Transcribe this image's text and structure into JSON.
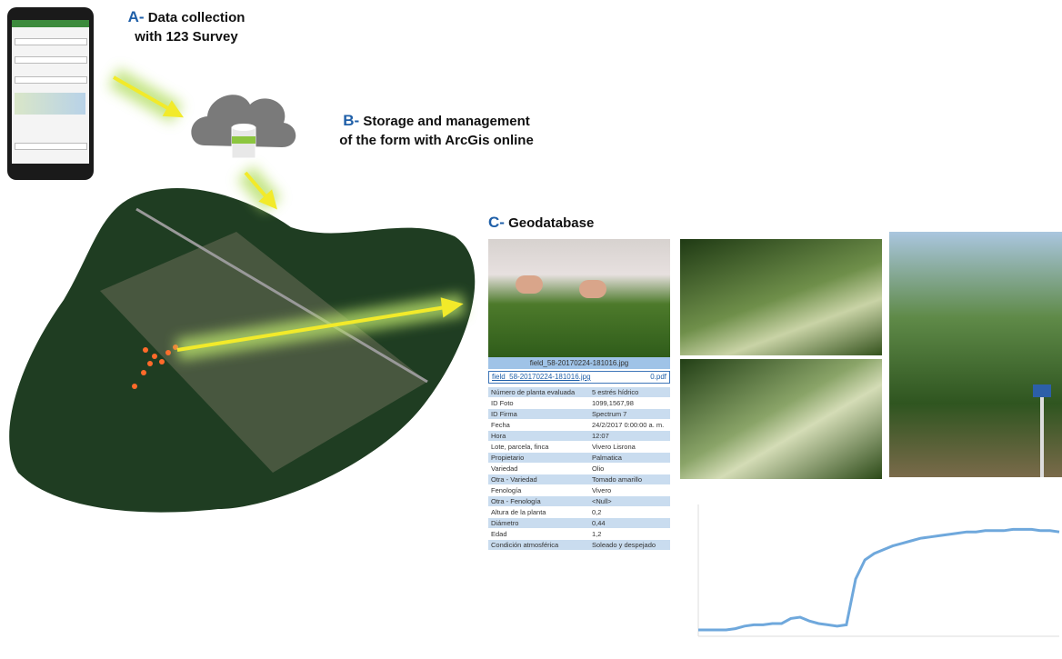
{
  "steps": [
    {
      "letter": "A-",
      "lines": [
        "Data collection",
        "with 123 Survey"
      ]
    },
    {
      "letter": "B-",
      "lines": [
        "Storage and management",
        "of the form with ArcGis online"
      ]
    },
    {
      "letter": "C-",
      "lines": [
        "Geodatabase"
      ]
    }
  ],
  "record": {
    "caption": "field_58-20170224-181016.jpg",
    "link": "field_58-20170224-181016.jpg",
    "attachment": "0.pdf",
    "rows": [
      [
        "Número de planta evaluada",
        "5 estrés hídrico"
      ],
      [
        "ID Foto",
        "1099,1567,98"
      ],
      [
        "ID Firma",
        "Spectrum 7"
      ],
      [
        "Fecha",
        "24/2/2017 0:00:00 a. m."
      ],
      [
        "Hora",
        "12:07"
      ],
      [
        "Lote, parcela, finca",
        "Vivero Lisrona"
      ],
      [
        "Propietario",
        "Palmatica"
      ],
      [
        "Variedad",
        "Olio"
      ],
      [
        "Otra - Variedad",
        "Tomado amarillo"
      ],
      [
        "Fenología",
        "Vivero"
      ],
      [
        "Otra - Fenología",
        "<Null>"
      ],
      [
        "Altura de la planta",
        "0,2"
      ],
      [
        "Diámetro",
        "0,44"
      ],
      [
        "Edad",
        "1,2"
      ],
      [
        "Condición atmosférica",
        "Soleado y despejado"
      ]
    ]
  },
  "chart_data": {
    "type": "line",
    "color": "#6fa8dc",
    "ylim": [
      0,
      100
    ],
    "values": [
      5,
      5,
      5,
      5,
      6,
      8,
      9,
      9,
      10,
      10,
      14,
      15,
      12,
      10,
      9,
      8,
      9,
      45,
      60,
      65,
      68,
      71,
      73,
      75,
      77,
      78,
      79,
      80,
      81,
      82,
      82,
      83,
      83,
      83,
      84,
      84,
      84,
      83,
      83,
      82
    ]
  }
}
